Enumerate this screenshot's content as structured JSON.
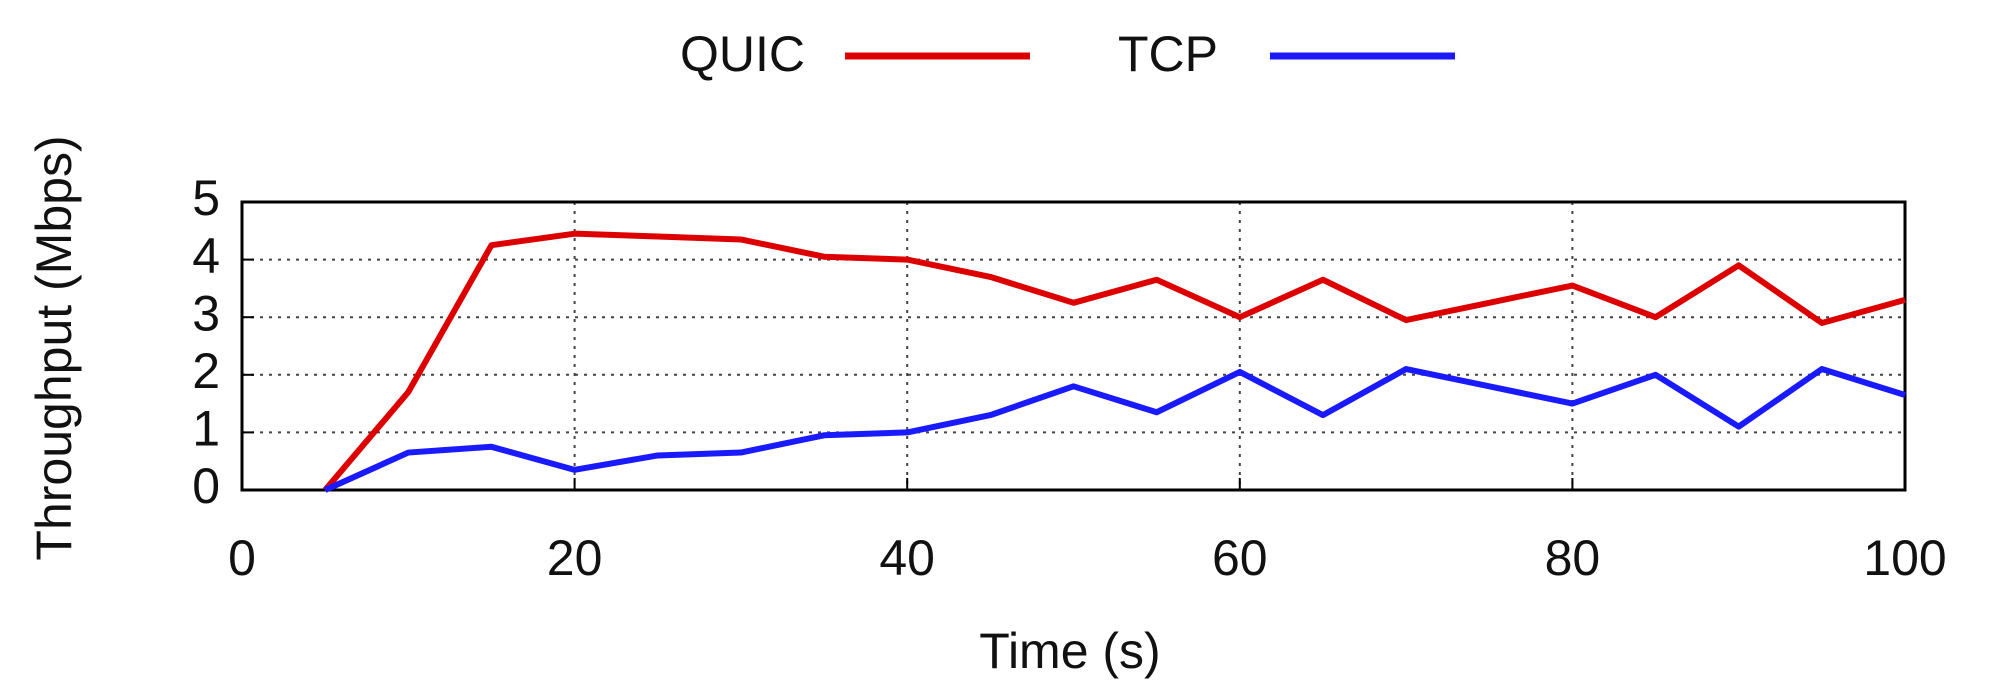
{
  "chart_data": {
    "type": "line",
    "x_label": "Time (s)",
    "y_label": "Throughput (Mbps)",
    "x": [
      5,
      10,
      15,
      20,
      25,
      30,
      35,
      40,
      45,
      50,
      55,
      60,
      65,
      70,
      75,
      80,
      85,
      90,
      95,
      100
    ],
    "series": [
      {
        "name": "QUIC",
        "color": "#dd0000",
        "values": [
          0,
          1.7,
          4.25,
          4.45,
          4.4,
          4.35,
          4.05,
          4.0,
          3.7,
          3.25,
          3.65,
          3.0,
          3.65,
          2.95,
          3.25,
          3.55,
          3.0,
          3.9,
          2.9,
          3.3
        ]
      },
      {
        "name": "TCP",
        "color": "#1a1aff",
        "values": [
          0,
          0.65,
          0.75,
          0.35,
          0.6,
          0.65,
          0.95,
          1.0,
          1.3,
          1.8,
          1.35,
          2.05,
          1.3,
          2.1,
          1.8,
          1.5,
          2.0,
          1.1,
          2.1,
          1.65
        ]
      }
    ],
    "xlim": [
      0,
      100
    ],
    "xticks": [
      0,
      20,
      40,
      60,
      80,
      100
    ],
    "ylim": [
      0,
      5
    ],
    "yticks": [
      0,
      1,
      2,
      3,
      4,
      5
    ],
    "grid": true,
    "legend": "top"
  }
}
